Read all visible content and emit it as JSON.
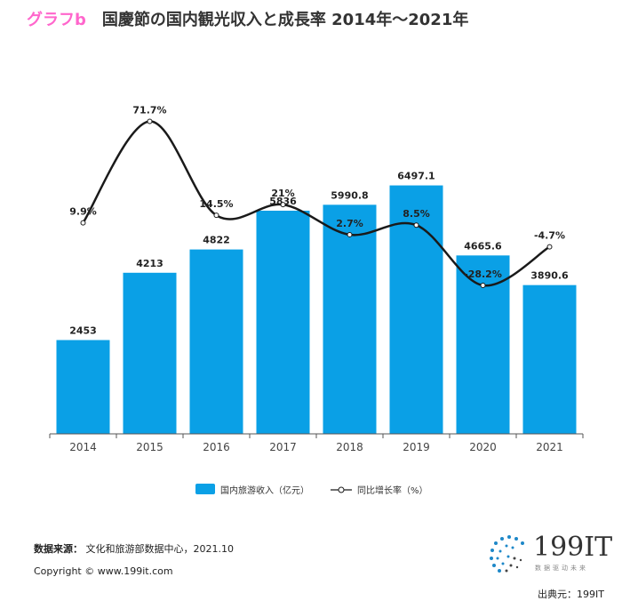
{
  "header": {
    "tag": "グラフb",
    "title": "国慶節の国内観光収入と成長率  2014年～2021年"
  },
  "colors": {
    "bar": "#0aa0e6",
    "line": "#1a1a1a",
    "tag": "#ff66cc"
  },
  "chart_data": {
    "type": "bar",
    "categories": [
      "2014",
      "2015",
      "2016",
      "2017",
      "2018",
      "2019",
      "2020",
      "2021"
    ],
    "series": [
      {
        "name": "国内旅游收入（亿元）",
        "type": "bar",
        "values": [
          2453,
          4213,
          4822,
          5836,
          5990.8,
          6497.1,
          4665.6,
          3890.6
        ],
        "labels": [
          "2453",
          "4213",
          "4822",
          "5836",
          "5990.8",
          "6497.1",
          "4665.6",
          "3890.6"
        ]
      },
      {
        "name": "同比增长率（%）",
        "type": "line",
        "values": [
          9.9,
          71.7,
          14.5,
          21,
          2.7,
          8.5,
          -28.2,
          -4.7
        ],
        "labels": [
          "9.9%",
          "71.7%",
          "14.5%",
          "21%",
          "2.7%",
          "8.5%",
          "-28.2%",
          "-4.7%"
        ]
      }
    ],
    "ylim_bar": [
      0,
      9300
    ],
    "ylim_line": [
      -45,
      85
    ],
    "legend_position": "bottom-center",
    "grid": false
  },
  "footer": {
    "source_label": "数据来源：",
    "source_text": "文化和旅游部数据中心，2021.10",
    "copyright": "Copyright ©   www.199it.com",
    "logo_text": "199IT",
    "logo_sub": "数据驱动未来",
    "credit": "出典元：199IT"
  }
}
